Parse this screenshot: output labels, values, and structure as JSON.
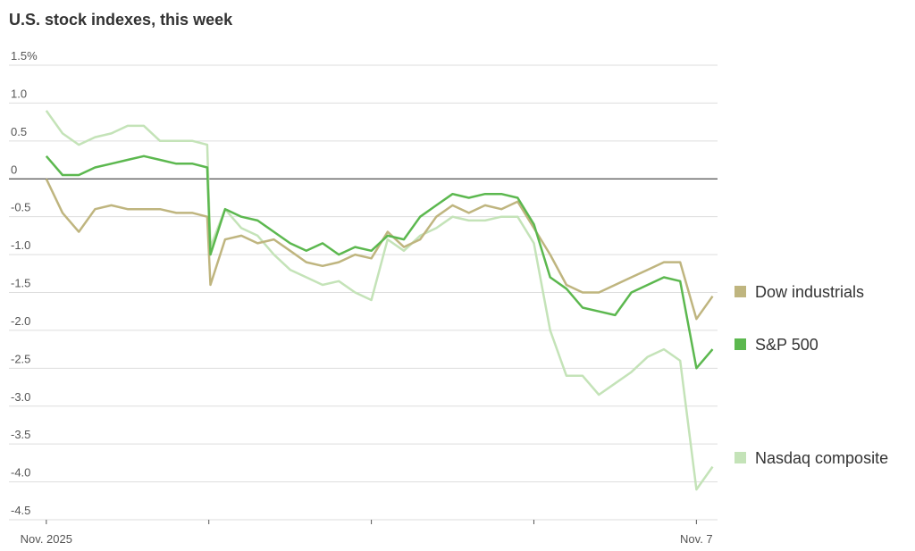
{
  "chart_data": {
    "type": "line",
    "title": "U.S. stock indexes, this week",
    "x": [
      0,
      0.1,
      0.2,
      0.3,
      0.4,
      0.5,
      0.6,
      0.7,
      0.8,
      0.9,
      0.99,
      1.01,
      1.1,
      1.2,
      1.3,
      1.4,
      1.5,
      1.6,
      1.7,
      1.8,
      1.9,
      2.0,
      2.1,
      2.2,
      2.3,
      2.4,
      2.5,
      2.6,
      2.7,
      2.8,
      2.9,
      3.0,
      3.1,
      3.2,
      3.3,
      3.4,
      3.5,
      3.6,
      3.7,
      3.8,
      3.9,
      4.0,
      4.1
    ],
    "series": [
      {
        "name": "Dow industrials",
        "color": "#bfb57f",
        "values": [
          0,
          -0.45,
          -0.7,
          -0.4,
          -0.35,
          -0.4,
          -0.4,
          -0.4,
          -0.45,
          -0.45,
          -0.5,
          -1.4,
          -0.8,
          -0.75,
          -0.85,
          -0.8,
          -0.95,
          -1.1,
          -1.15,
          -1.1,
          -1.0,
          -1.05,
          -0.7,
          -0.9,
          -0.8,
          -0.5,
          -0.35,
          -0.45,
          -0.35,
          -0.4,
          -0.3,
          -0.65,
          -1.0,
          -1.4,
          -1.5,
          -1.5,
          -1.4,
          -1.3,
          -1.2,
          -1.1,
          -1.1,
          -1.85,
          -1.55
        ]
      },
      {
        "name": "S&P 500",
        "color": "#5cb84f",
        "values": [
          0.3,
          0.05,
          0.05,
          0.15,
          0.2,
          0.25,
          0.3,
          0.25,
          0.2,
          0.2,
          0.15,
          -1.0,
          -0.4,
          -0.5,
          -0.55,
          -0.7,
          -0.85,
          -0.95,
          -0.85,
          -1.0,
          -0.9,
          -0.95,
          -0.75,
          -0.8,
          -0.5,
          -0.35,
          -0.2,
          -0.25,
          -0.2,
          -0.2,
          -0.25,
          -0.6,
          -1.3,
          -1.45,
          -1.7,
          -1.75,
          -1.8,
          -1.5,
          -1.4,
          -1.3,
          -1.35,
          -2.5,
          -2.25
        ]
      },
      {
        "name": "Nasdaq composite",
        "color": "#c4e3b8",
        "values": [
          0.9,
          0.6,
          0.45,
          0.55,
          0.6,
          0.7,
          0.7,
          0.5,
          0.5,
          0.5,
          0.45,
          -0.9,
          -0.4,
          -0.65,
          -0.75,
          -1.0,
          -1.2,
          -1.3,
          -1.4,
          -1.35,
          -1.5,
          -1.6,
          -0.8,
          -0.95,
          -0.75,
          -0.65,
          -0.5,
          -0.55,
          -0.55,
          -0.5,
          -0.5,
          -0.85,
          -2.0,
          -2.6,
          -2.6,
          -2.85,
          -2.7,
          -2.55,
          -2.35,
          -2.25,
          -2.4,
          -4.1,
          -3.8
        ]
      }
    ],
    "xlim": [
      -0.23,
      4.13
    ],
    "xticks": [
      {
        "value": 0,
        "label": "Nov. 2025"
      },
      {
        "value": 4,
        "label": "Nov. 7"
      }
    ],
    "x_day_marks": [
      1,
      2,
      3
    ],
    "ylim": [
      -4.5,
      1.5
    ],
    "yticks": [
      {
        "value": 1.5,
        "label": "1.5%"
      },
      {
        "value": 1,
        "label": "1.0"
      },
      0.5,
      0,
      -0.5,
      {
        "value": -1,
        "label": "-1.0"
      },
      -1.5,
      {
        "value": -2,
        "label": "-2.0"
      },
      -2.5,
      {
        "value": -3,
        "label": "-3.0"
      },
      -3.5,
      {
        "value": -4,
        "label": "-4.0"
      },
      -4.5
    ],
    "grid": true
  }
}
